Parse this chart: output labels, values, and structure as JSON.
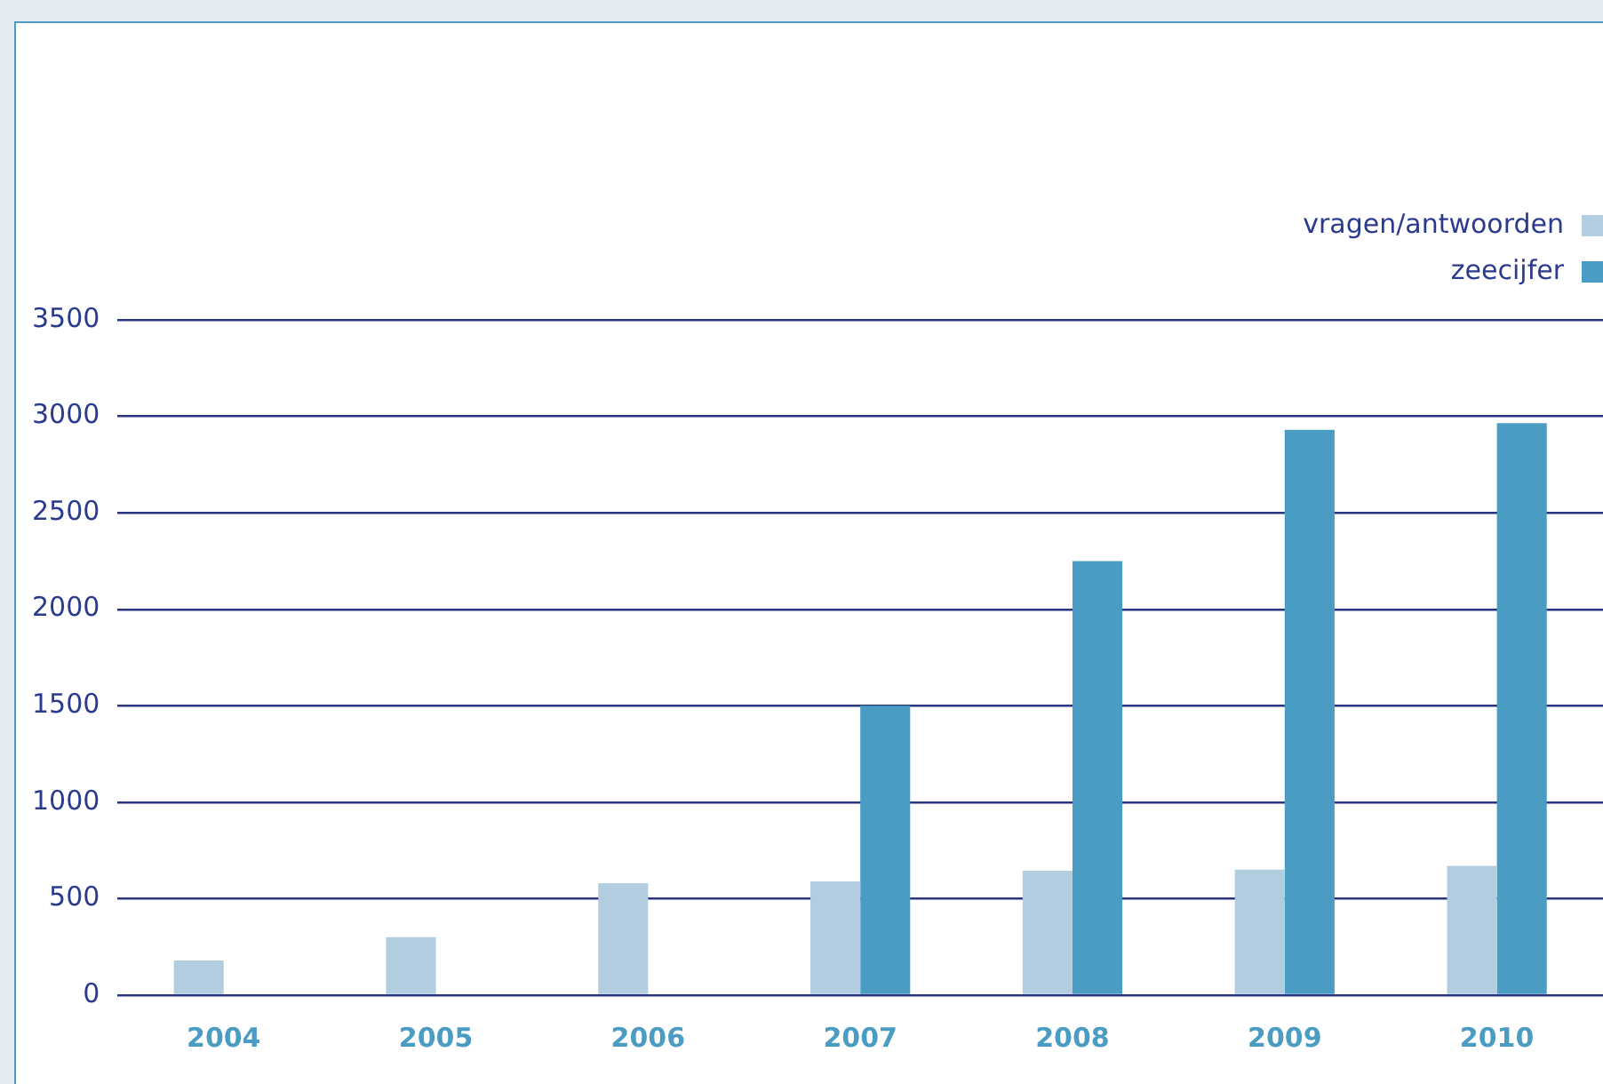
{
  "chart_data": {
    "type": "bar",
    "categories": [
      "2004",
      "2005",
      "2006",
      "2007",
      "2008",
      "2009",
      "2010"
    ],
    "series": [
      {
        "name": "vragen/antwoorden",
        "color": "#b3cde0",
        "values": [
          180,
          300,
          580,
          590,
          645,
          650,
          670
        ]
      },
      {
        "name": "zeecijfer",
        "color": "#4a9cc3",
        "values": [
          null,
          null,
          null,
          1500,
          2250,
          2930,
          2965
        ]
      }
    ],
    "ylim": [
      0,
      3500
    ],
    "yticks": [
      0,
      500,
      1000,
      1500,
      2000,
      2500,
      3000,
      3500
    ],
    "grid": "y",
    "legend": "top right"
  }
}
